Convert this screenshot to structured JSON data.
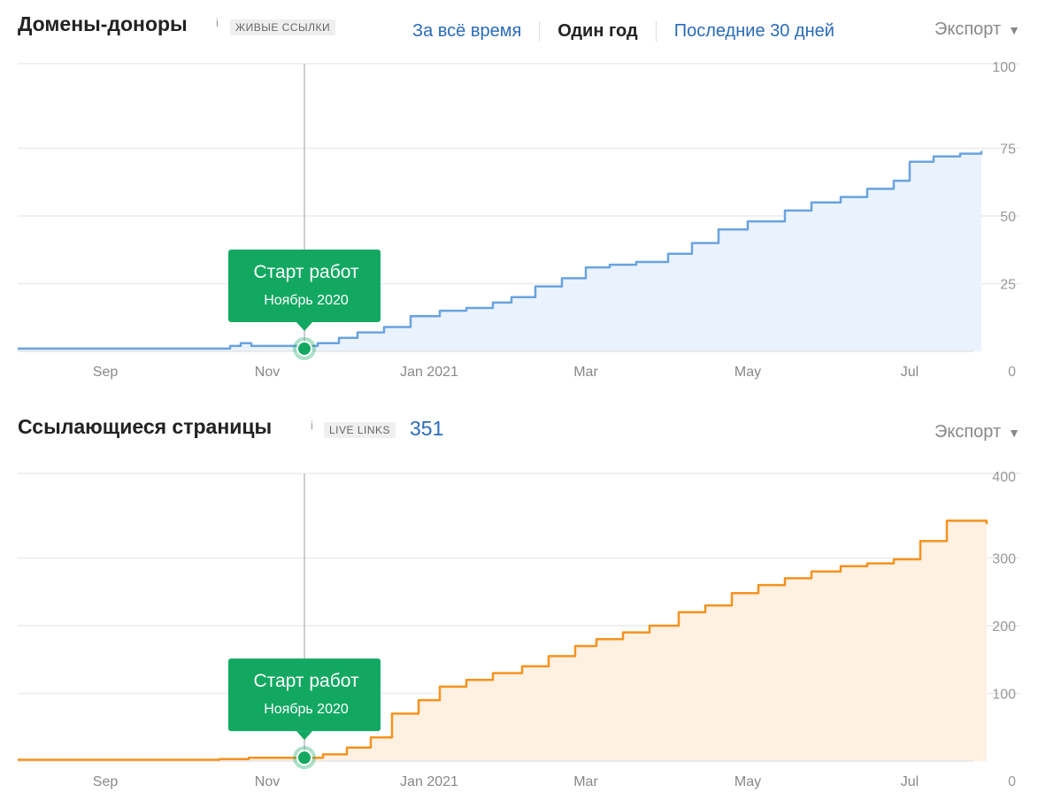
{
  "colors": {
    "link": "#2a6bb8",
    "marker": "#12a862",
    "series1_line": "#6aa3e0",
    "series1_fill": "#eaf3fd",
    "series2_line": "#f5921e",
    "series2_fill": "#fef1e2"
  },
  "panel1": {
    "title": "Домены-доноры",
    "info_icon": "i",
    "badge": "ЖИВЫЕ ССЫЛКИ",
    "tabs": [
      {
        "label": "За всё время",
        "active": false
      },
      {
        "label": "Один год",
        "active": true
      },
      {
        "label": "Последние 30 дней",
        "active": false
      }
    ],
    "export_label": "Экспорт",
    "export_icon": "caret-down-icon"
  },
  "panel2": {
    "title": "Ссылающиеся страницы",
    "info_icon": "i",
    "badge": "LIVE LINKS",
    "count": "351",
    "export_label": "Экспорт",
    "export_icon": "caret-down-icon"
  },
  "chart_data": [
    {
      "type": "area",
      "title": "Домены-доноры",
      "x_ticks": [
        "Sep",
        "Nov",
        "Jan 2021",
        "Mar",
        "May",
        "Jul"
      ],
      "x_tick_dates": [
        "2020-09-01",
        "2020-11-01",
        "2021-01-01",
        "2021-03-01",
        "2021-05-01",
        "2021-07-01"
      ],
      "x_range": [
        "2020-07-30",
        "2021-07-31"
      ],
      "ylim": [
        0,
        100
      ],
      "y_ticks": [
        0,
        25,
        50,
        75,
        100
      ],
      "y_tick_labels": [
        "0",
        "25",
        "50",
        "75",
        "100"
      ],
      "grid": true,
      "series": [
        {
          "x": [
            "2020-07-30",
            "2020-10-10",
            "2020-10-18",
            "2020-10-22",
            "2020-10-26",
            "2020-11-15",
            "2020-11-20",
            "2020-11-28",
            "2020-12-05",
            "2020-12-15",
            "2020-12-25",
            "2021-01-05",
            "2021-01-15",
            "2021-01-25",
            "2021-02-01",
            "2021-02-10",
            "2021-02-20",
            "2021-03-01",
            "2021-03-10",
            "2021-03-20",
            "2021-04-01",
            "2021-04-10",
            "2021-04-20",
            "2021-05-01",
            "2021-05-15",
            "2021-05-25",
            "2021-06-05",
            "2021-06-15",
            "2021-06-25",
            "2021-07-01",
            "2021-07-10",
            "2021-07-20",
            "2021-07-28"
          ],
          "y": [
            1,
            1,
            2,
            3,
            2,
            2,
            3,
            5,
            7,
            9,
            13,
            15,
            16,
            18,
            20,
            24,
            27,
            31,
            32,
            33,
            36,
            40,
            45,
            48,
            52,
            55,
            57,
            60,
            63,
            70,
            72,
            73,
            74
          ]
        }
      ],
      "annotation": {
        "date": "2020-11-15",
        "value": 1,
        "title": "Старт работ",
        "subtitle": "Ноябрь 2020"
      }
    },
    {
      "type": "area",
      "title": "Ссылающиеся страницы",
      "x_ticks": [
        "Sep",
        "Nov",
        "Jan 2021",
        "Mar",
        "May",
        "Jul"
      ],
      "x_tick_dates": [
        "2020-09-01",
        "2020-11-01",
        "2021-01-01",
        "2021-03-01",
        "2021-05-01",
        "2021-07-01"
      ],
      "x_range": [
        "2020-07-30",
        "2021-07-31"
      ],
      "ylim": [
        0,
        400
      ],
      "y_ticks": [
        0,
        100,
        200,
        300,
        400
      ],
      "y_tick_labels": [
        "0",
        "100",
        "200",
        "300",
        "400"
      ],
      "grid": true,
      "series": [
        {
          "x": [
            "2020-07-30",
            "2020-10-14",
            "2020-10-25",
            "2020-11-15",
            "2020-11-22",
            "2020-12-01",
            "2020-12-10",
            "2020-12-18",
            "2020-12-28",
            "2021-01-05",
            "2021-01-15",
            "2021-01-25",
            "2021-02-05",
            "2021-02-15",
            "2021-02-25",
            "2021-03-05",
            "2021-03-15",
            "2021-03-25",
            "2021-04-05",
            "2021-04-15",
            "2021-04-25",
            "2021-05-05",
            "2021-05-15",
            "2021-05-25",
            "2021-06-05",
            "2021-06-15",
            "2021-06-25",
            "2021-07-05",
            "2021-07-15",
            "2021-07-30"
          ],
          "y": [
            2,
            3,
            5,
            5,
            10,
            20,
            35,
            70,
            90,
            110,
            120,
            130,
            140,
            155,
            170,
            180,
            190,
            200,
            220,
            230,
            248,
            260,
            270,
            280,
            288,
            292,
            298,
            325,
            355,
            350
          ]
        }
      ],
      "annotation": {
        "date": "2020-11-15",
        "value": 5,
        "title": "Старт работ",
        "subtitle": "Ноябрь 2020"
      }
    }
  ]
}
